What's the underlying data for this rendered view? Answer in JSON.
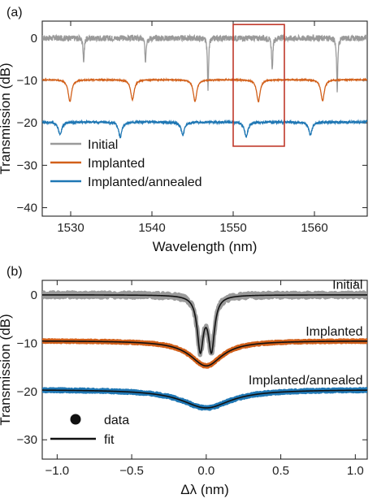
{
  "colors": {
    "initial": "#9a9a9a",
    "implanted": "#d2601a",
    "annealed": "#1f77b4",
    "box": "#c0392b",
    "fit": "#111111"
  },
  "chart_data": [
    {
      "type": "line",
      "panel_label": "(a)",
      "xlabel": "Wavelength (nm)",
      "ylabel": "Transmission (dB)",
      "xlim": [
        1526.5,
        1566.5
      ],
      "ylim": [
        -42,
        4
      ],
      "xticks": [
        1530,
        1540,
        1550,
        1560
      ],
      "xtick_labels": [
        "1530",
        "1540",
        "1550",
        "1560"
      ],
      "yticks": [
        0,
        -10,
        -20,
        -30,
        -40
      ],
      "ytick_labels": [
        "0",
        "−10",
        "−20",
        "−30",
        "−40"
      ],
      "grid": false,
      "legend_position": "bottom-left",
      "highlight_box": {
        "x": [
          1550,
          1556.3
        ],
        "y": [
          -25.5,
          3.2
        ]
      },
      "series": [
        {
          "name": "Initial",
          "color_key": "initial",
          "baseline": 0,
          "noise": 0.7,
          "resonances": [
            {
              "x": 1531.6,
              "depth": 5.5,
              "width": 0.08
            },
            {
              "x": 1539.2,
              "depth": 5.5,
              "width": 0.08
            },
            {
              "x": 1546.9,
              "depth": 12.0,
              "width": 0.08
            },
            {
              "x": 1554.8,
              "depth": 8.0,
              "width": 0.08
            },
            {
              "x": 1562.8,
              "depth": 12.5,
              "width": 0.08
            }
          ]
        },
        {
          "name": "Implanted",
          "color_key": "implanted",
          "baseline": -9.8,
          "noise": 0.12,
          "resonances": [
            {
              "x": 1529.9,
              "depth": 5.2,
              "width": 0.25
            },
            {
              "x": 1537.6,
              "depth": 4.8,
              "width": 0.25
            },
            {
              "x": 1545.3,
              "depth": 5.2,
              "width": 0.25
            },
            {
              "x": 1553.1,
              "depth": 5.2,
              "width": 0.25
            },
            {
              "x": 1561.0,
              "depth": 5.0,
              "width": 0.25
            }
          ]
        },
        {
          "name": "Implanted/annealed",
          "color_key": "annealed",
          "baseline": -19.8,
          "noise": 0.3,
          "resonances": [
            {
              "x": 1528.7,
              "depth": 3.0,
              "width": 0.25
            },
            {
              "x": 1536.1,
              "depth": 3.5,
              "width": 0.25
            },
            {
              "x": 1543.8,
              "depth": 3.0,
              "width": 0.25
            },
            {
              "x": 1551.6,
              "depth": 3.5,
              "width": 0.25
            },
            {
              "x": 1559.5,
              "depth": 3.0,
              "width": 0.25
            }
          ]
        }
      ]
    },
    {
      "type": "line",
      "panel_label": "(b)",
      "xlabel": "Δλ (nm)",
      "ylabel": "Transmission (dB)",
      "xlim": [
        -1.1,
        1.08
      ],
      "ylim": [
        -34,
        3
      ],
      "xticks": [
        -1.0,
        -0.5,
        0.0,
        0.5,
        1.0
      ],
      "xtick_labels": [
        "−1.0",
        "−0.5",
        "0.0",
        "0.5",
        "1.0"
      ],
      "yticks": [
        0,
        -10,
        -20,
        -30
      ],
      "ytick_labels": [
        "0",
        "−10",
        "−20",
        "−30"
      ],
      "grid": false,
      "legend_position": "bottom-left",
      "legend": [
        {
          "label": "data",
          "marker": "dot"
        },
        {
          "label": "fit",
          "marker": "line"
        }
      ],
      "series": [
        {
          "name": "Initial",
          "color_key": "initial",
          "label_at": [
            1.05,
            1.2
          ],
          "baseline": 0,
          "noise": 0.5,
          "resonances": [
            {
              "x": -0.04,
              "depth": 11.0,
              "width": 0.025
            },
            {
              "x": 0.035,
              "depth": 11.0,
              "width": 0.025
            }
          ]
        },
        {
          "name": "Implanted",
          "color_key": "implanted",
          "label_at": [
            1.05,
            -8.4
          ],
          "baseline": -9.5,
          "noise": 0.15,
          "resonances": [
            {
              "x": 0.0,
              "depth": 5.2,
              "width": 0.13
            }
          ]
        },
        {
          "name": "Implanted/annealed",
          "color_key": "annealed",
          "label_at": [
            1.05,
            -18.5
          ],
          "baseline": -19.6,
          "noise": 0.2,
          "resonances": [
            {
              "x": 0.0,
              "depth": 3.8,
              "width": 0.2
            }
          ]
        }
      ]
    }
  ]
}
